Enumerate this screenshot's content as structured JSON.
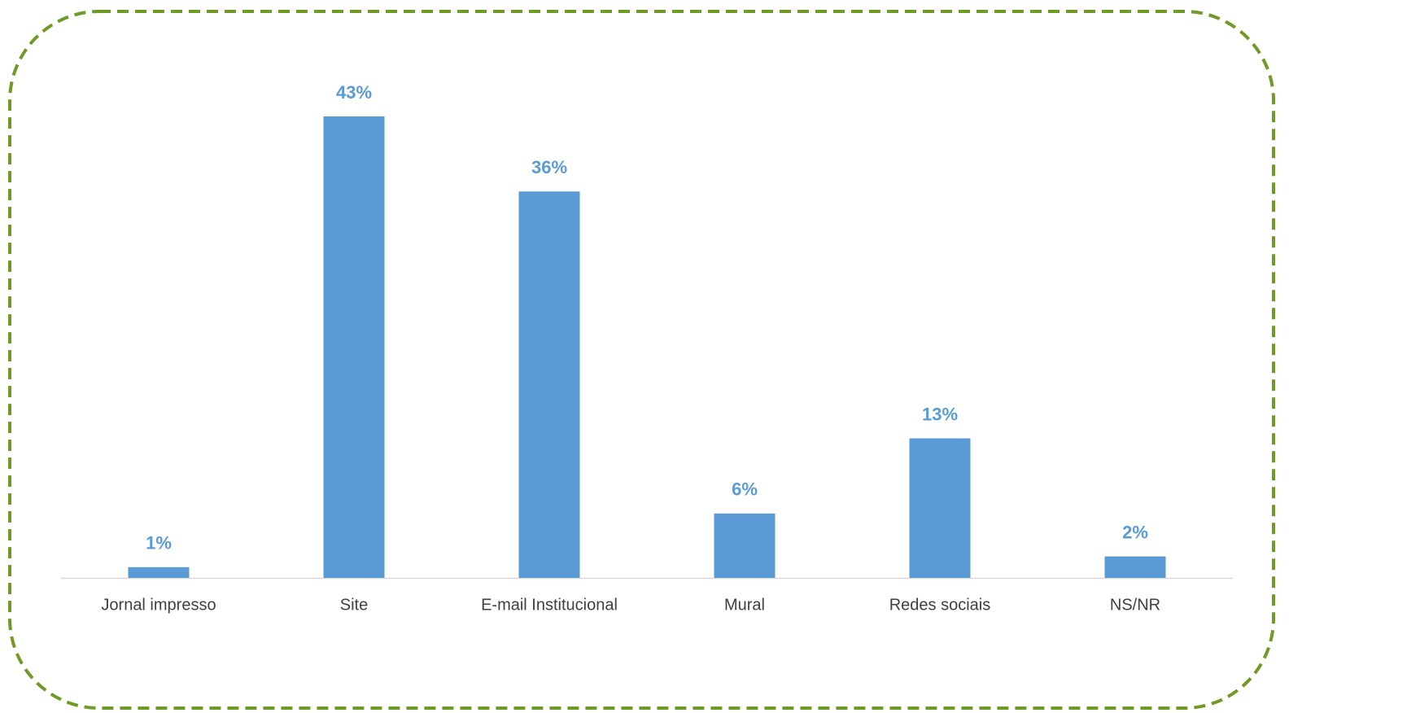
{
  "chart_data": {
    "type": "bar",
    "categories": [
      "Jornal impresso",
      "Site",
      "E-mail Institucional",
      "Mural",
      "Redes sociais",
      "NS/NR"
    ],
    "values": [
      1,
      43,
      36,
      6,
      13,
      2
    ],
    "value_labels": [
      "1%",
      "43%",
      "36%",
      "6%",
      "13%",
      "2%"
    ],
    "color": "#5b9bd5"
  }
}
